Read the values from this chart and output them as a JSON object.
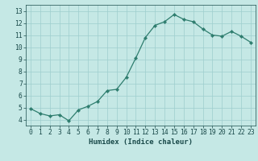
{
  "x": [
    0,
    1,
    2,
    3,
    4,
    5,
    6,
    7,
    8,
    9,
    10,
    11,
    12,
    13,
    14,
    15,
    16,
    17,
    18,
    19,
    20,
    21,
    22,
    23
  ],
  "y": [
    4.9,
    4.5,
    4.3,
    4.4,
    3.9,
    4.8,
    5.1,
    5.5,
    6.4,
    6.5,
    7.5,
    9.1,
    10.8,
    11.8,
    12.1,
    12.7,
    12.3,
    12.1,
    11.5,
    11.0,
    10.9,
    11.3,
    10.9,
    10.4
  ],
  "line_color": "#2e7d6e",
  "marker": "D",
  "marker_size": 2.2,
  "bg_color": "#c5e8e5",
  "grid_color": "#9ecece",
  "xlabel": "Humidex (Indice chaleur)",
  "ylim": [
    3.5,
    13.5
  ],
  "xlim": [
    -0.5,
    23.5
  ],
  "yticks": [
    4,
    5,
    6,
    7,
    8,
    9,
    10,
    11,
    12,
    13
  ],
  "xticks": [
    0,
    1,
    2,
    3,
    4,
    5,
    6,
    7,
    8,
    9,
    10,
    11,
    12,
    13,
    14,
    15,
    16,
    17,
    18,
    19,
    20,
    21,
    22,
    23
  ],
  "xtick_labels": [
    "0",
    "1",
    "2",
    "3",
    "4",
    "5",
    "6",
    "7",
    "8",
    "9",
    "10",
    "11",
    "12",
    "13",
    "14",
    "15",
    "16",
    "17",
    "18",
    "19",
    "20",
    "21",
    "22",
    "23"
  ],
  "font_color": "#1a4a4a",
  "xlabel_fontsize": 6.5,
  "tick_fontsize": 5.8,
  "linewidth": 0.9
}
